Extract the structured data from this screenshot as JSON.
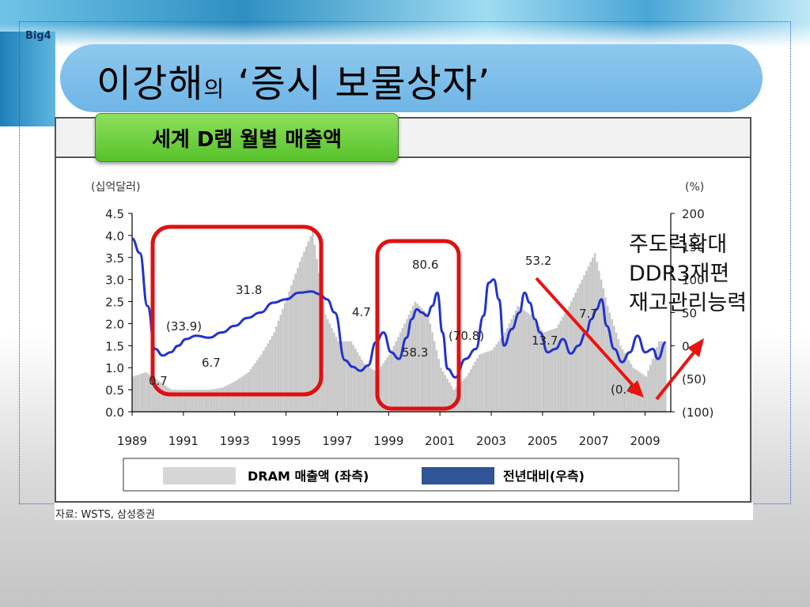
{
  "slide": {
    "brand": "Big4",
    "title_main": "이강해",
    "title_small": "의",
    "title_rest": " ‘증시 보물상자’",
    "badge": "세계 D램 월별 매출액",
    "source": "자료: WSTS, 삼성증권"
  },
  "colors": {
    "bar": "#c8c8c8",
    "line": "#2233cc",
    "highlight": "#e01010",
    "arrow": "#ee1111"
  },
  "annotations": {
    "lines": [
      "주도력확대",
      "DDR3재편",
      "재고관리능력"
    ]
  },
  "chart_data": {
    "type": "bar",
    "left_unit": "(십억달러)",
    "right_unit": "(%)",
    "left_ticks": [
      "0.0",
      "0.5",
      "1.0",
      "1.5",
      "2.0",
      "2.5",
      "3.0",
      "3.5",
      "4.0",
      "4.5"
    ],
    "right_ticks": [
      "(100)",
      "(50)",
      "0",
      "50",
      "100",
      "150",
      "200"
    ],
    "x_ticks": [
      "1989",
      "1991",
      "1993",
      "1995",
      "1997",
      "1999",
      "2001",
      "2003",
      "2005",
      "2007",
      "2009"
    ],
    "ylim_left": [
      0,
      4.5
    ],
    "ylim_right": [
      -100,
      200
    ],
    "xlim": [
      1989,
      2010
    ],
    "legend": [
      {
        "label": "DRAM 매출액 (좌측)",
        "color": "#d6d6d6"
      },
      {
        "label": "전년대비(우측)",
        "color": "#2f5597"
      }
    ],
    "series": [
      {
        "name": "DRAM 매출액 (좌측)",
        "axis": "left",
        "x": [
          1989.0,
          1989.5,
          1990.0,
          1990.5,
          1991.0,
          1991.5,
          1992.0,
          1992.5,
          1993.0,
          1993.5,
          1994.0,
          1994.5,
          1995.0,
          1995.5,
          1996.0,
          1996.5,
          1997.0,
          1997.5,
          1998.0,
          1998.5,
          1999.0,
          1999.5,
          2000.0,
          2000.5,
          2001.0,
          2001.5,
          2002.0,
          2002.5,
          2003.0,
          2003.5,
          2004.0,
          2004.5,
          2005.0,
          2005.5,
          2006.0,
          2006.5,
          2007.0,
          2007.5,
          2008.0,
          2008.5,
          2009.0,
          2009.5
        ],
        "values": [
          0.8,
          0.9,
          0.7,
          0.5,
          0.5,
          0.5,
          0.5,
          0.55,
          0.7,
          0.9,
          1.3,
          1.8,
          2.6,
          3.4,
          4.1,
          2.2,
          1.6,
          1.6,
          1.1,
          0.9,
          1.3,
          1.9,
          2.5,
          2.2,
          1.0,
          0.5,
          0.8,
          1.3,
          1.4,
          1.8,
          2.4,
          2.2,
          1.8,
          1.9,
          2.4,
          3.0,
          3.6,
          2.4,
          1.5,
          1.0,
          0.8,
          1.6
        ]
      },
      {
        "name": "전년대비(우측)",
        "axis": "right",
        "x": [
          1989.0,
          1989.3,
          1989.6,
          1989.9,
          1990.2,
          1990.5,
          1990.8,
          1991.1,
          1991.5,
          1992.0,
          1992.5,
          1993.0,
          1993.5,
          1994.0,
          1994.5,
          1995.0,
          1995.5,
          1996.0,
          1996.3,
          1996.6,
          1996.9,
          1997.3,
          1997.6,
          1997.9,
          1998.2,
          1998.5,
          1998.8,
          1999.1,
          1999.4,
          1999.7,
          1999.9,
          2000.1,
          2000.3,
          2000.5,
          2000.7,
          2000.9,
          2001.1,
          2001.3,
          2001.6,
          2002.0,
          2002.4,
          2002.7,
          2002.9,
          2003.1,
          2003.3,
          2003.5,
          2003.8,
          2004.1,
          2004.3,
          2004.5,
          2004.7,
          2004.9,
          2005.2,
          2005.5,
          2005.8,
          2006.1,
          2006.4,
          2006.7,
          2006.9,
          2007.1,
          2007.3,
          2007.5,
          2007.8,
          2008.1,
          2008.4,
          2008.7,
          2009.0,
          2009.3,
          2009.5,
          2009.8
        ],
        "values": [
          162,
          140,
          60,
          -5,
          -15,
          -10,
          0,
          10,
          15,
          12,
          20,
          30,
          42,
          50,
          65,
          70,
          80,
          82,
          78,
          70,
          50,
          -22,
          -32,
          -38,
          -30,
          5,
          20,
          -10,
          -20,
          12,
          40,
          55,
          50,
          45,
          60,
          80,
          20,
          -35,
          -48,
          -20,
          -5,
          45,
          95,
          100,
          70,
          0,
          25,
          50,
          80,
          65,
          40,
          20,
          -10,
          -5,
          10,
          -12,
          0,
          20,
          40,
          55,
          70,
          30,
          -5,
          -25,
          -10,
          15,
          -10,
          -5,
          -20,
          5
        ]
      }
    ],
    "labels": [
      "(33.9)",
      "6.7",
      "0.7",
      "31.8",
      "4.7",
      "80.6",
      "58.3",
      "(70.8)",
      "53.2",
      "13.7",
      "7.7",
      "(0.4"
    ]
  }
}
